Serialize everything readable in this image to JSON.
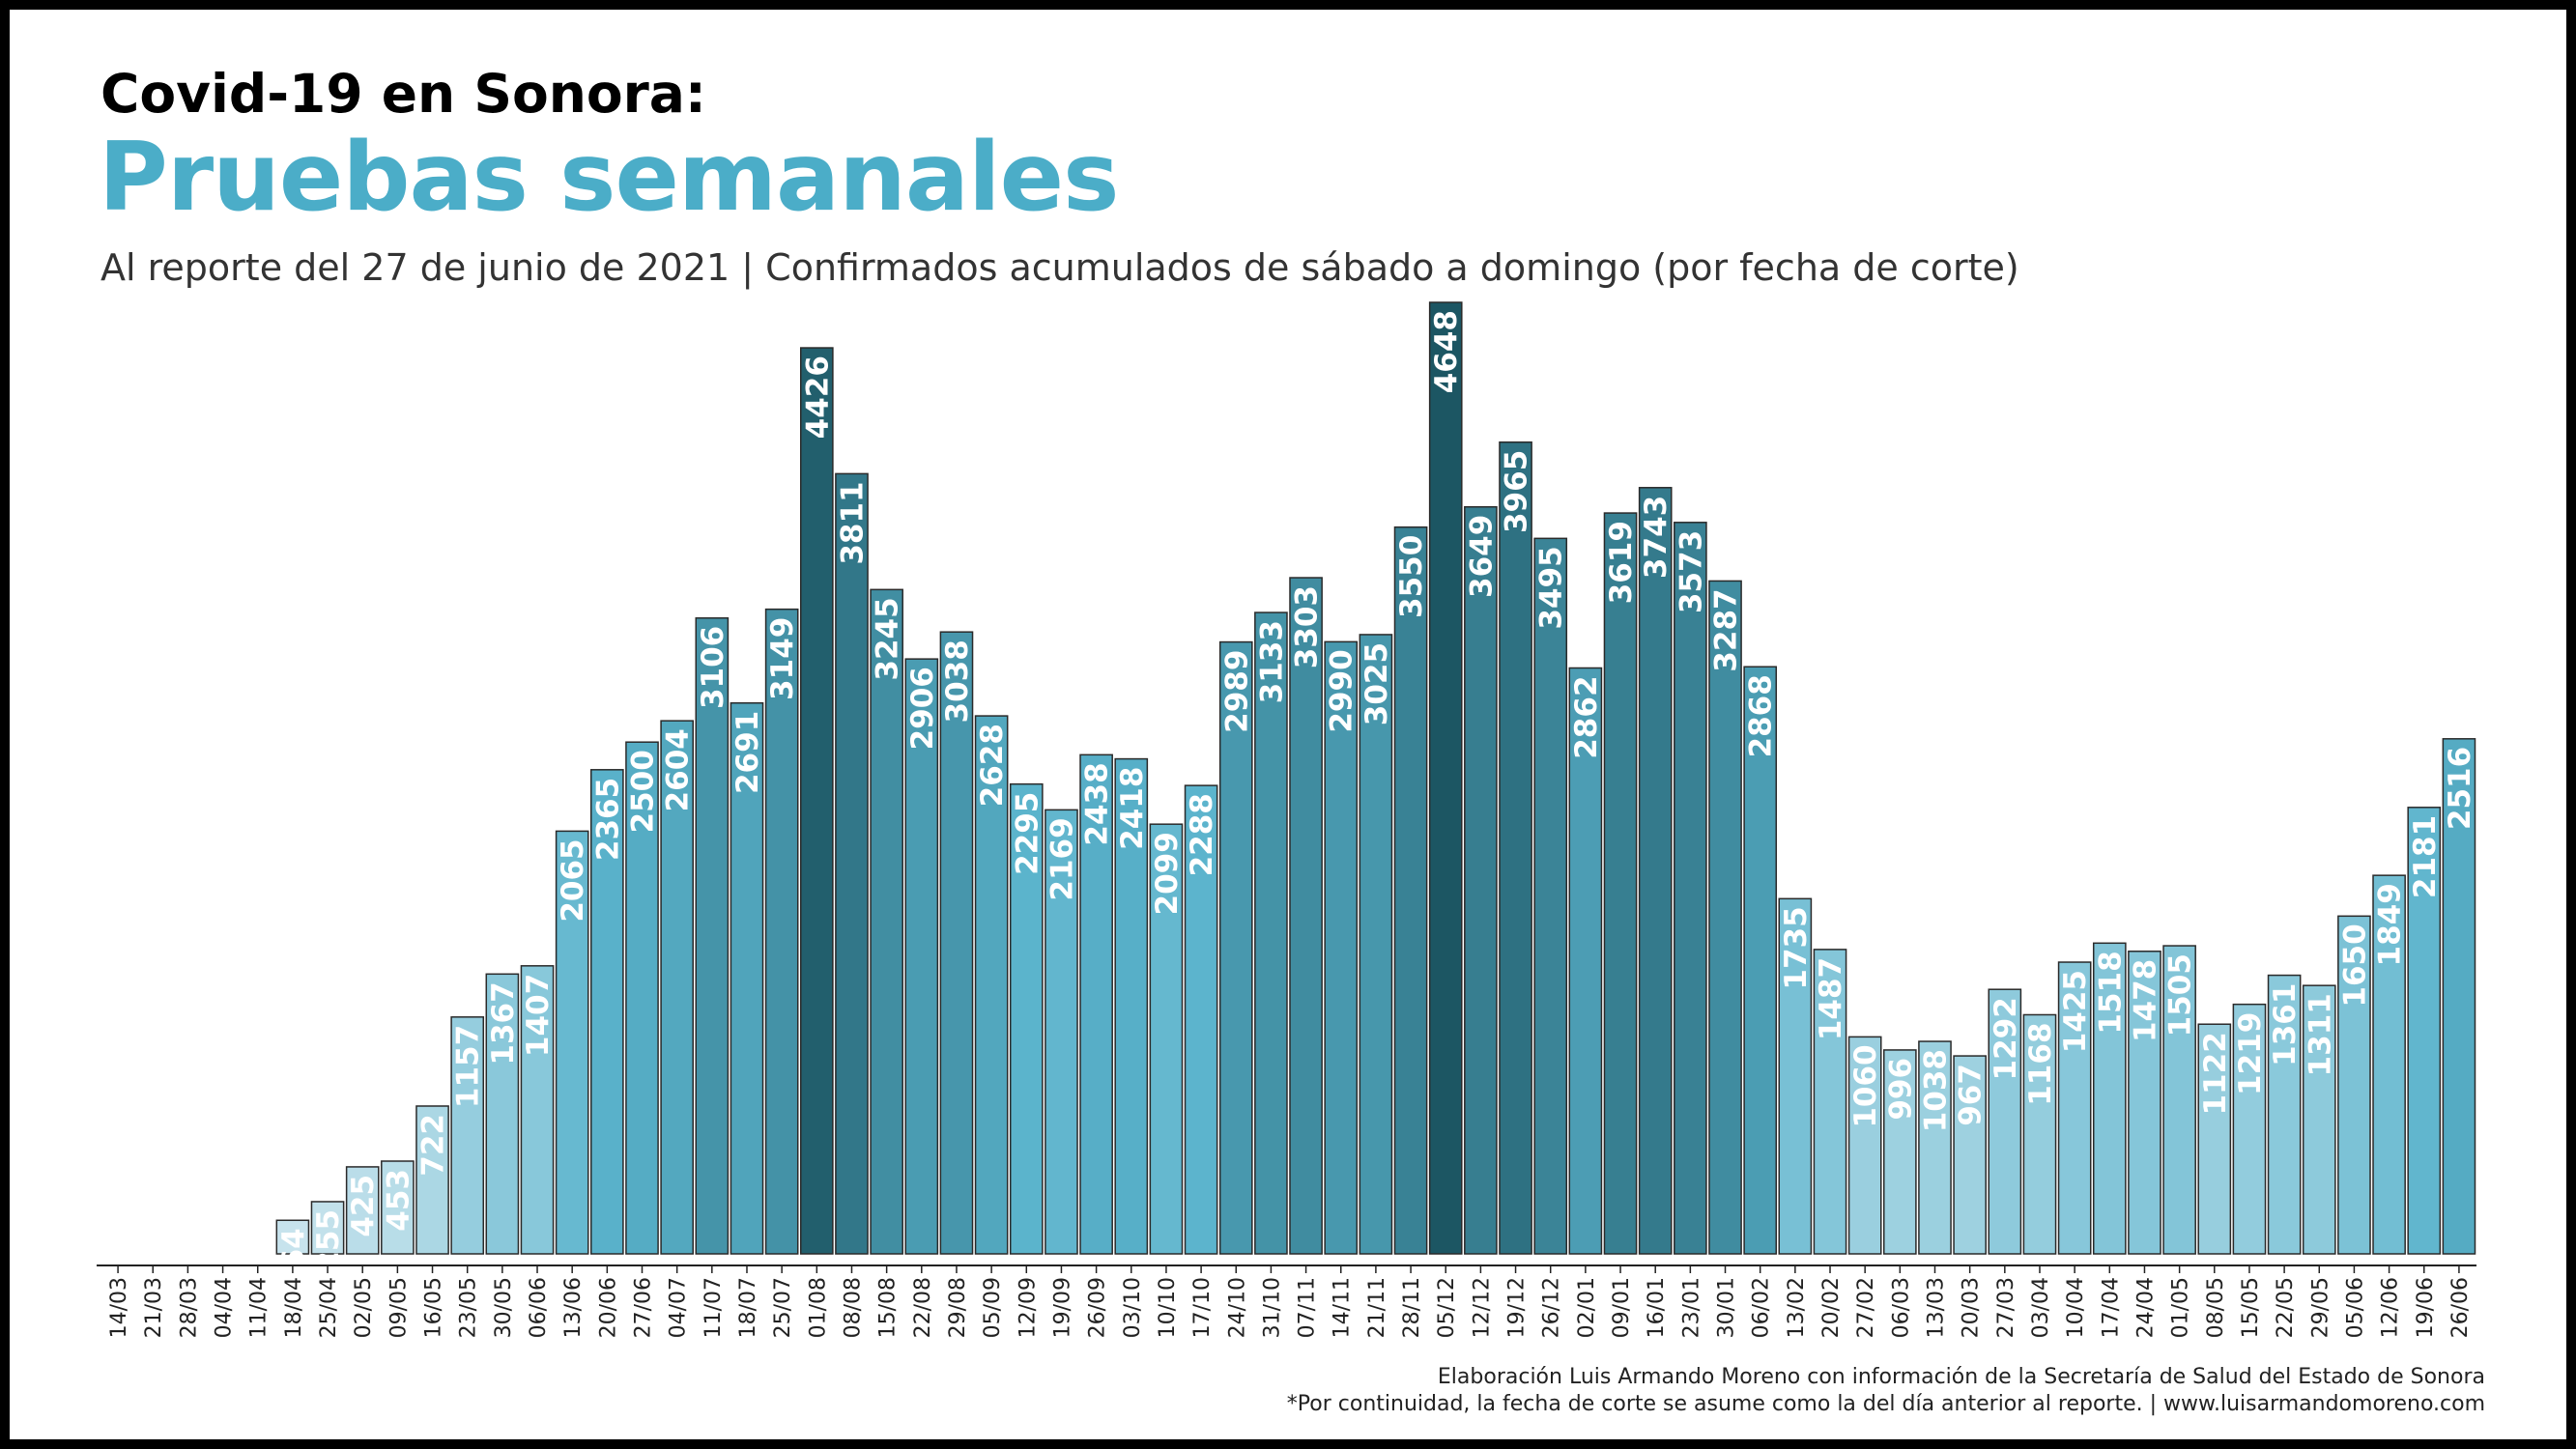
{
  "header": {
    "kicker": "Covid-19 en Sonora:",
    "title": "Pruebas semanales",
    "subtitle": "Al reporte del 27 de junio de 2021 | Confirmados acumulados de sábado a domingo (por fecha de corte)"
  },
  "footer": {
    "credit": "Elaboración Luis Armando Moreno con información de la Secretaría de Salud del Estado de Sonora",
    "note": "*Por continuidad, la fecha de corte se asume como la del día anterior al reporte. | www.luisarmandomoreno.com"
  },
  "chart_data": {
    "type": "bar",
    "categories": [
      "14/03",
      "21/03",
      "28/03",
      "04/04",
      "11/04",
      "18/04",
      "25/04",
      "02/05",
      "09/05",
      "16/05",
      "23/05",
      "30/05",
      "06/06",
      "13/06",
      "20/06",
      "27/06",
      "04/07",
      "11/07",
      "18/07",
      "25/07",
      "01/08",
      "08/08",
      "15/08",
      "22/08",
      "29/08",
      "05/09",
      "12/09",
      "19/09",
      "26/09",
      "03/10",
      "10/10",
      "17/10",
      "24/10",
      "31/10",
      "07/11",
      "14/11",
      "21/11",
      "28/11",
      "05/12",
      "12/12",
      "19/12",
      "26/12",
      "02/01",
      "09/01",
      "16/01",
      "23/01",
      "30/01",
      "06/02",
      "13/02",
      "20/02",
      "27/02",
      "06/03",
      "13/03",
      "20/03",
      "27/03",
      "03/04",
      "10/04",
      "17/04",
      "24/04",
      "01/05",
      "08/05",
      "15/05",
      "22/05",
      "29/05",
      "05/06",
      "12/06",
      "19/06",
      "26/06"
    ],
    "values": [
      0,
      0,
      0,
      0,
      0,
      164,
      255,
      425,
      453,
      722,
      1157,
      1367,
      1407,
      2065,
      2365,
      2500,
      2604,
      3106,
      2691,
      3149,
      4426,
      3811,
      3245,
      2906,
      3038,
      2628,
      2295,
      2169,
      2438,
      2418,
      2099,
      2288,
      2989,
      3133,
      3303,
      2990,
      3025,
      3550,
      4648,
      3649,
      3965,
      3495,
      2862,
      3619,
      3743,
      3573,
      3287,
      2868,
      1735,
      1487,
      1060,
      996,
      1038,
      967,
      1292,
      1168,
      1425,
      1518,
      1478,
      1505,
      1122,
      1219,
      1361,
      1311,
      1650,
      1849,
      2181,
      2516
    ],
    "labels": [
      "",
      "",
      "",
      "",
      "",
      "164",
      "255",
      "425",
      "453",
      "722",
      "1157",
      "1367",
      "1407",
      "2065",
      "2365",
      "2500",
      "2604",
      "3106",
      "2691",
      "3149",
      "4426",
      "3811",
      "3245",
      "2906",
      "3038",
      "2628",
      "2295",
      "2169",
      "2438",
      "2418",
      "2099",
      "2288",
      "2989",
      "3133",
      "3303",
      "2990",
      "3025",
      "3550",
      "4648",
      "3649",
      "3965",
      "3495",
      "2862",
      "3619",
      "3743",
      "3573",
      "3287",
      "2868",
      "1735",
      "1487",
      "1060",
      "996",
      "1038",
      "967",
      "1292",
      "1168",
      "1425",
      "1518",
      "1478",
      "1505",
      "1122",
      "1219",
      "1361",
      "1311",
      "1650",
      "1849",
      "2181",
      "2516"
    ],
    "ylim": [
      0,
      4648
    ],
    "grid": false,
    "legend": "none",
    "color_scale": [
      "#cfe7ef",
      "#5ab3cc",
      "#1c5663"
    ]
  }
}
